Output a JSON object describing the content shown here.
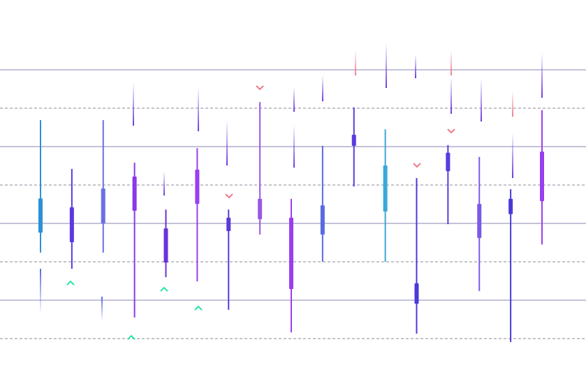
{
  "chart_data": {
    "type": "candlestick",
    "grid": true,
    "ylim": [
      0,
      9.8
    ],
    "yticks": [
      1,
      2,
      3,
      4,
      5,
      6,
      7,
      8
    ],
    "candles": [
      {
        "high": 6.69,
        "low": 3.24,
        "open": 3.76,
        "close": 4.65,
        "color": "#2f8fd8"
      },
      {
        "high": 5.42,
        "low": 2.82,
        "open": 3.51,
        "close": 4.42,
        "color": "#5a3ae0"
      },
      {
        "high": 6.69,
        "low": 3.24,
        "open": 4.0,
        "close": 4.91,
        "color": "#6a6ee6"
      },
      {
        "high": 5.58,
        "low": 1.55,
        "open": 4.33,
        "close": 5.22,
        "color": "#8a38e8"
      },
      {
        "high": 4.36,
        "low": 2.6,
        "open": 2.98,
        "close": 3.87,
        "color": "#6a32d8"
      },
      {
        "high": 5.96,
        "low": 2.49,
        "open": 4.51,
        "close": 5.4,
        "color": "#9a3ef0"
      },
      {
        "high": 4.36,
        "low": 1.75,
        "open": 3.8,
        "close": 4.15,
        "color": "#5a3ad8"
      },
      {
        "high": 7.16,
        "low": 3.71,
        "open": 4.11,
        "close": 4.64,
        "color": "#9a58e8"
      },
      {
        "high": 4.64,
        "low": 1.16,
        "open": 2.29,
        "close": 4.15,
        "color": "#9a3ef0"
      },
      {
        "high": 6.02,
        "low": 3.0,
        "open": 3.71,
        "close": 4.47,
        "color": "#5a6ae0"
      },
      {
        "high": 7.02,
        "low": 4.96,
        "open": 6.02,
        "close": 6.31,
        "color": "#5a3ae0"
      },
      {
        "high": 6.45,
        "low": 3.0,
        "open": 4.31,
        "close": 5.51,
        "color": "#3aa8d8"
      },
      {
        "high": 5.18,
        "low": 1.13,
        "open": 1.91,
        "close": 2.44,
        "color": "#4a3ad8"
      },
      {
        "high": 6.04,
        "low": 3.98,
        "open": 5.36,
        "close": 5.84,
        "color": "#5a3ae0"
      },
      {
        "high": 5.73,
        "low": 2.24,
        "open": 3.62,
        "close": 4.51,
        "color": "#7a58e8"
      },
      {
        "high": 4.89,
        "low": 0.91,
        "open": 4.24,
        "close": 4.64,
        "color": "#4a3ad8"
      },
      {
        "high": 6.95,
        "low": 3.45,
        "open": 4.58,
        "close": 5.87,
        "color": "#9a3ef0"
      }
    ]
  }
}
